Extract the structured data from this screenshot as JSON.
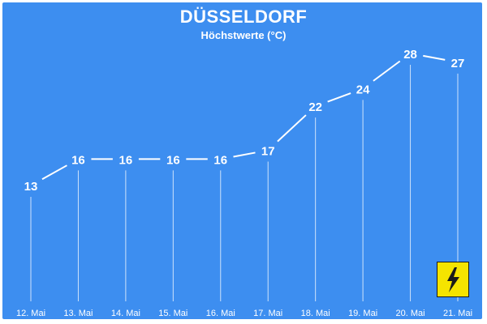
{
  "header": {
    "title": "DÜSSELDORF",
    "subtitle": "Höchstwerte (°C)"
  },
  "chart_data": {
    "type": "line",
    "title": "DÜSSELDORF",
    "subtitle": "Höchstwerte (°C)",
    "xlabel": "",
    "ylabel": "",
    "categories": [
      "12. Mai",
      "13. Mai",
      "14. Mai",
      "15. Mai",
      "16. Mai",
      "17. Mai",
      "18. Mai",
      "19. Mai",
      "20. Mai",
      "21. Mai"
    ],
    "values": [
      13,
      16,
      16,
      16,
      16,
      17,
      22,
      24,
      28,
      27
    ],
    "ylim": [
      10,
      30
    ],
    "grid": false,
    "data_labels": true,
    "colors": {
      "background": "#3d8ef0",
      "line": "#ffffff",
      "text": "#ffffff"
    }
  },
  "badge": {
    "icon": "lightning-icon",
    "color": "#f5e400"
  }
}
